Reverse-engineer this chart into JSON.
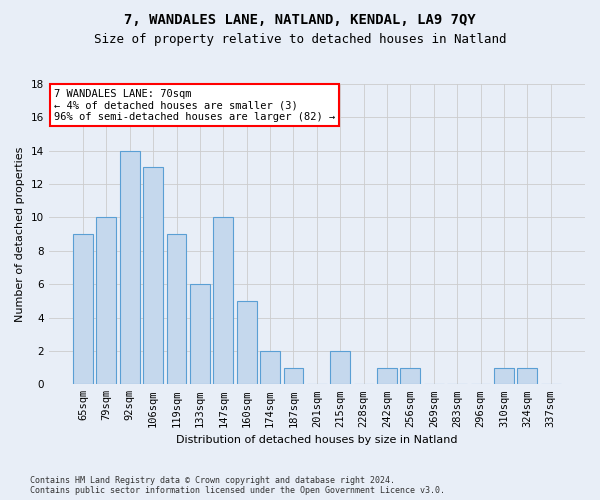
{
  "title": "7, WANDALES LANE, NATLAND, KENDAL, LA9 7QY",
  "subtitle": "Size of property relative to detached houses in Natland",
  "xlabel": "Distribution of detached houses by size in Natland",
  "ylabel": "Number of detached properties",
  "categories": [
    "65sqm",
    "79sqm",
    "92sqm",
    "106sqm",
    "119sqm",
    "133sqm",
    "147sqm",
    "160sqm",
    "174sqm",
    "187sqm",
    "201sqm",
    "215sqm",
    "228sqm",
    "242sqm",
    "256sqm",
    "269sqm",
    "283sqm",
    "296sqm",
    "310sqm",
    "324sqm",
    "337sqm"
  ],
  "values": [
    9,
    10,
    14,
    13,
    9,
    6,
    10,
    5,
    2,
    1,
    0,
    2,
    0,
    1,
    1,
    0,
    0,
    0,
    1,
    1,
    0
  ],
  "bar_color": "#c5d8ed",
  "bar_edge_color": "#5a9fd4",
  "annotation_line1": "7 WANDALES LANE: 70sqm",
  "annotation_line2": "← 4% of detached houses are smaller (3)",
  "annotation_line3": "96% of semi-detached houses are larger (82) →",
  "annotation_box_color": "white",
  "annotation_box_edge_color": "red",
  "ylim": [
    0,
    18
  ],
  "yticks": [
    0,
    2,
    4,
    6,
    8,
    10,
    12,
    14,
    16,
    18
  ],
  "grid_color": "#cccccc",
  "bg_color": "#e8eef7",
  "footer_line1": "Contains HM Land Registry data © Crown copyright and database right 2024.",
  "footer_line2": "Contains public sector information licensed under the Open Government Licence v3.0.",
  "title_fontsize": 10,
  "subtitle_fontsize": 9,
  "ylabel_fontsize": 8,
  "xlabel_fontsize": 8,
  "tick_fontsize": 7.5,
  "annotation_fontsize": 7.5,
  "footer_fontsize": 6
}
